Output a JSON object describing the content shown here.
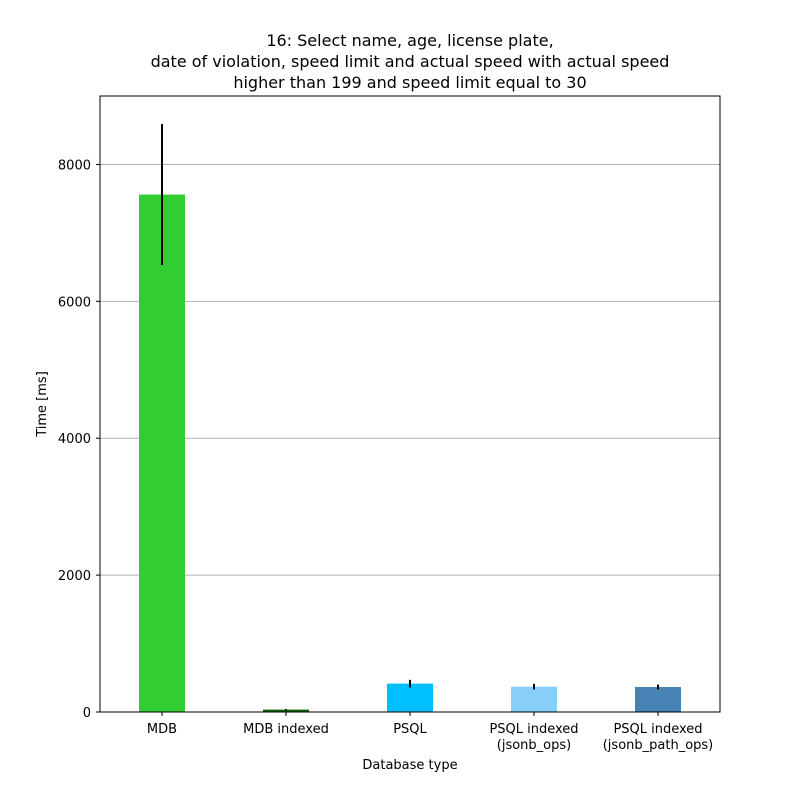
{
  "chart_data": {
    "type": "bar",
    "title_lines": [
      "16: Select name, age, license plate,",
      "date of violation, speed limit and actual speed with actual speed",
      "higher than 199 and speed limit equal to 30"
    ],
    "xlabel": "Database type",
    "ylabel": "Time [ms]",
    "ylim": [
      0,
      9000
    ],
    "yticks": [
      0,
      2000,
      4000,
      6000,
      8000
    ],
    "grid": "y",
    "categories": [
      [
        "MDB"
      ],
      [
        "MDB indexed"
      ],
      [
        "PSQL"
      ],
      [
        "PSQL indexed",
        "(jsonb_ops)"
      ],
      [
        "PSQL indexed",
        "(jsonb_path_ops)"
      ]
    ],
    "values": [
      7560,
      35,
      415,
      370,
      365
    ],
    "errors": [
      1030,
      8,
      55,
      40,
      35
    ],
    "colors": [
      "#32cd32",
      "#006400",
      "#00bfff",
      "#87cefa",
      "#4682b4"
    ]
  }
}
